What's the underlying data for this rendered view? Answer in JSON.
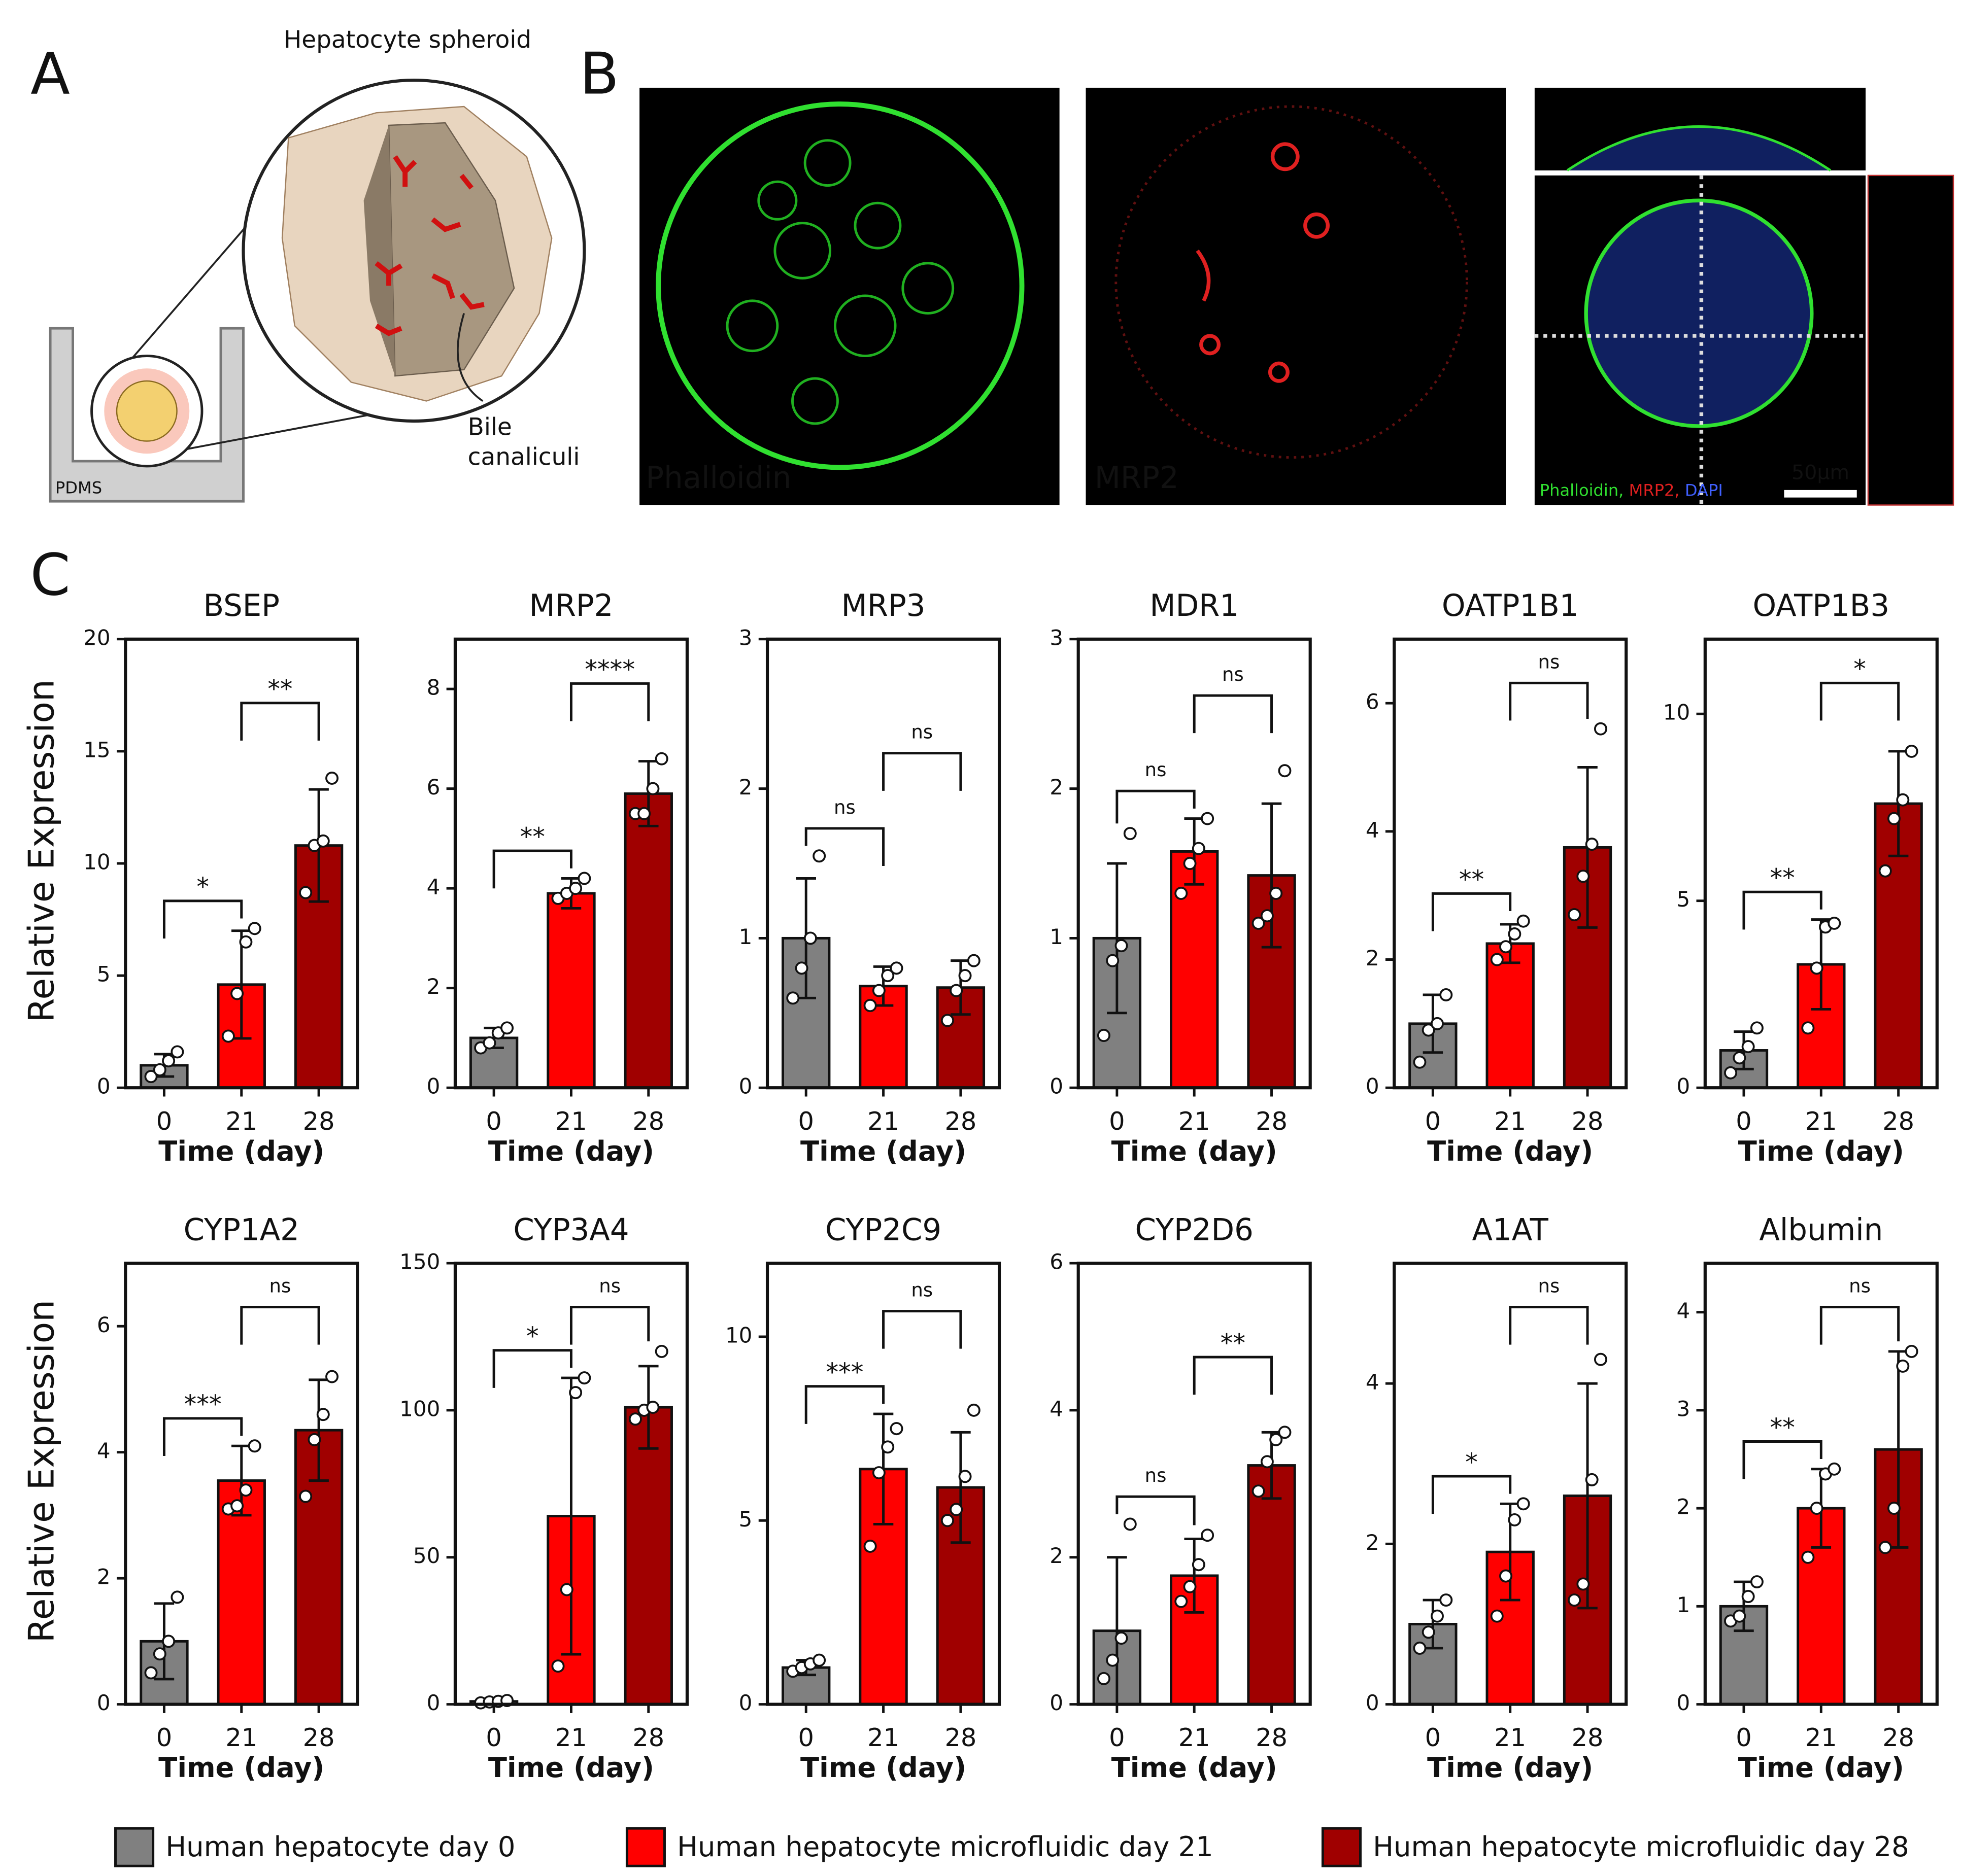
{
  "panels": {
    "A": {
      "label": "A",
      "title": "Hepatocyte spheroid",
      "annotation": [
        "Bile",
        "canaliculi"
      ],
      "material": "PDMS"
    },
    "B": {
      "label": "B",
      "images": [
        "Phalloidin",
        "MRP2"
      ],
      "merge_labels": [
        "Phalloidin,",
        "MRP2,",
        "DAPI"
      ],
      "scale_bar": "50µm"
    },
    "C": {
      "label": "C"
    }
  },
  "legend": [
    {
      "name": "Human hepatocyte day 0",
      "color": "#808080"
    },
    {
      "name": "Human hepatocyte microfluidic day 21",
      "color": "#ff0000"
    },
    {
      "name": "Human hepatocyte microfluidic day 28",
      "color": "#a00000"
    }
  ],
  "chart_data": [
    {
      "type": "bar",
      "title": "BSEP",
      "ylabel": "Relative Expression",
      "xlabel": "Time (day)",
      "categories": [
        "0",
        "21",
        "28"
      ],
      "values": [
        1.0,
        4.6,
        10.8
      ],
      "errors": [
        0.5,
        2.4,
        2.5
      ],
      "points": [
        [
          0.5,
          0.8,
          1.2,
          1.6
        ],
        [
          2.3,
          4.2,
          6.5,
          7.1
        ],
        [
          8.7,
          10.8,
          11.0,
          13.8
        ]
      ],
      "brackets": [
        "*",
        "**"
      ],
      "ylim": [
        0,
        20
      ],
      "yticks": [
        0,
        5,
        10,
        15,
        20
      ]
    },
    {
      "type": "bar",
      "title": "MRP2",
      "xlabel": "Time (day)",
      "categories": [
        "0",
        "21",
        "28"
      ],
      "values": [
        1.0,
        3.9,
        5.9
      ],
      "errors": [
        0.2,
        0.3,
        0.65
      ],
      "points": [
        [
          0.8,
          0.9,
          1.1,
          1.2
        ],
        [
          3.8,
          3.9,
          4.0,
          4.2
        ],
        [
          5.5,
          5.5,
          6.0,
          6.6
        ]
      ],
      "brackets": [
        "**",
        "****"
      ],
      "ylim": [
        0,
        9
      ],
      "yticks": [
        0,
        2,
        4,
        6,
        8
      ]
    },
    {
      "type": "bar",
      "title": "MRP3",
      "xlabel": "Time (day)",
      "categories": [
        "0",
        "21",
        "28"
      ],
      "values": [
        1.0,
        0.68,
        0.67
      ],
      "errors": [
        0.4,
        0.13,
        0.18
      ],
      "points": [
        [
          0.6,
          0.8,
          1.0,
          1.55
        ],
        [
          0.55,
          0.65,
          0.75,
          0.8
        ],
        [
          0.45,
          0.65,
          0.75,
          0.85
        ]
      ],
      "brackets": [
        "ns",
        "ns"
      ],
      "ylim": [
        0,
        3
      ],
      "yticks": [
        0,
        1,
        2,
        3
      ]
    },
    {
      "type": "bar",
      "title": "MDR1",
      "xlabel": "Time (day)",
      "categories": [
        "0",
        "21",
        "28"
      ],
      "values": [
        1.0,
        1.58,
        1.42
      ],
      "errors": [
        0.5,
        0.22,
        0.48
      ],
      "points": [
        [
          0.35,
          0.85,
          0.95,
          1.7
        ],
        [
          1.3,
          1.5,
          1.6,
          1.8
        ],
        [
          1.1,
          1.15,
          1.3,
          2.12
        ]
      ],
      "brackets": [
        "ns",
        "ns"
      ],
      "ylim": [
        0,
        3
      ],
      "yticks": [
        0,
        1,
        2,
        3
      ]
    },
    {
      "type": "bar",
      "title": "OATP1B1",
      "xlabel": "Time (day)",
      "categories": [
        "0",
        "21",
        "28"
      ],
      "values": [
        1.0,
        2.25,
        3.75
      ],
      "errors": [
        0.45,
        0.3,
        1.25
      ],
      "points": [
        [
          0.4,
          0.9,
          1.0,
          1.45
        ],
        [
          2.0,
          2.2,
          2.4,
          2.6
        ],
        [
          2.7,
          3.3,
          3.8,
          5.6
        ]
      ],
      "brackets": [
        "**",
        "ns"
      ],
      "ylim": [
        0,
        7
      ],
      "yticks": [
        0,
        2,
        4,
        6
      ]
    },
    {
      "type": "bar",
      "title": "OATP1B3",
      "xlabel": "Time (day)",
      "categories": [
        "0",
        "21",
        "28"
      ],
      "values": [
        1.0,
        3.3,
        7.6
      ],
      "errors": [
        0.5,
        1.2,
        1.4
      ],
      "points": [
        [
          0.4,
          0.8,
          1.1,
          1.6
        ],
        [
          1.6,
          3.2,
          4.3,
          4.4
        ],
        [
          5.8,
          7.2,
          7.7,
          9.0
        ]
      ],
      "brackets": [
        "**",
        "*"
      ],
      "ylim": [
        0,
        12
      ],
      "yticks": [
        0,
        5,
        10
      ]
    },
    {
      "type": "bar",
      "title": "CYP1A2",
      "ylabel": "Relative Expression",
      "xlabel": "Time (day)",
      "categories": [
        "0",
        "21",
        "28"
      ],
      "values": [
        1.0,
        3.55,
        4.35
      ],
      "errors": [
        0.6,
        0.55,
        0.8
      ],
      "points": [
        [
          0.5,
          0.8,
          1.0,
          1.7
        ],
        [
          3.1,
          3.15,
          3.4,
          4.1
        ],
        [
          3.3,
          4.2,
          4.6,
          5.2
        ]
      ],
      "brackets": [
        "***",
        "ns"
      ],
      "ylim": [
        0,
        7
      ],
      "yticks": [
        0,
        2,
        4,
        6
      ]
    },
    {
      "type": "bar",
      "title": "CYP3A4",
      "xlabel": "Time (day)",
      "categories": [
        "0",
        "21",
        "28"
      ],
      "values": [
        1.0,
        64,
        101
      ],
      "errors": [
        0.5,
        47,
        14
      ],
      "points": [
        [
          0.5,
          0.8,
          1.0,
          1.3
        ],
        [
          13,
          39,
          106,
          111
        ],
        [
          97,
          100,
          101,
          120
        ]
      ],
      "brackets": [
        "*",
        "ns"
      ],
      "ylim": [
        0,
        150
      ],
      "yticks": [
        0,
        50,
        100,
        150
      ]
    },
    {
      "type": "bar",
      "title": "CYP2C9",
      "xlabel": "Time (day)",
      "categories": [
        "0",
        "21",
        "28"
      ],
      "values": [
        1.0,
        6.4,
        5.9
      ],
      "errors": [
        0.2,
        1.5,
        1.5
      ],
      "points": [
        [
          0.9,
          1.0,
          1.1,
          1.2
        ],
        [
          4.3,
          6.3,
          7.0,
          7.5
        ],
        [
          5.0,
          5.3,
          6.2,
          8.0
        ]
      ],
      "brackets": [
        "***",
        "ns"
      ],
      "ylim": [
        0,
        12
      ],
      "yticks": [
        0,
        5,
        10
      ]
    },
    {
      "type": "bar",
      "title": "CYP2D6",
      "xlabel": "Time (day)",
      "categories": [
        "0",
        "21",
        "28"
      ],
      "values": [
        1.0,
        1.75,
        3.25
      ],
      "errors": [
        1.0,
        0.5,
        0.45
      ],
      "points": [
        [
          0.35,
          0.6,
          0.9,
          2.45
        ],
        [
          1.4,
          1.6,
          1.9,
          2.3
        ],
        [
          2.9,
          3.3,
          3.6,
          3.7
        ]
      ],
      "brackets": [
        "ns",
        "**"
      ],
      "ylim": [
        0,
        6
      ],
      "yticks": [
        0,
        2,
        4,
        6
      ]
    },
    {
      "type": "bar",
      "title": "A1AT",
      "xlabel": "Time (day)",
      "categories": [
        "0",
        "21",
        "28"
      ],
      "values": [
        1.0,
        1.9,
        2.6
      ],
      "errors": [
        0.3,
        0.6,
        1.4
      ],
      "points": [
        [
          0.7,
          0.9,
          1.1,
          1.3
        ],
        [
          1.1,
          1.6,
          2.3,
          2.5
        ],
        [
          1.3,
          1.5,
          2.8,
          4.3
        ]
      ],
      "brackets": [
        "*",
        "ns"
      ],
      "ylim": [
        0,
        5.5
      ],
      "yticks": [
        0,
        2,
        4
      ]
    },
    {
      "type": "bar",
      "title": "Albumin",
      "xlabel": "Time (day)",
      "categories": [
        "0",
        "21",
        "28"
      ],
      "values": [
        1.0,
        2.0,
        2.6
      ],
      "errors": [
        0.25,
        0.4,
        1.0
      ],
      "points": [
        [
          0.85,
          0.9,
          1.1,
          1.25
        ],
        [
          1.5,
          2.0,
          2.35,
          2.4
        ],
        [
          1.6,
          2.0,
          3.45,
          3.6
        ]
      ],
      "brackets": [
        "**",
        "ns"
      ],
      "ylim": [
        0,
        4.5
      ],
      "yticks": [
        0,
        1,
        2,
        3,
        4
      ]
    }
  ]
}
